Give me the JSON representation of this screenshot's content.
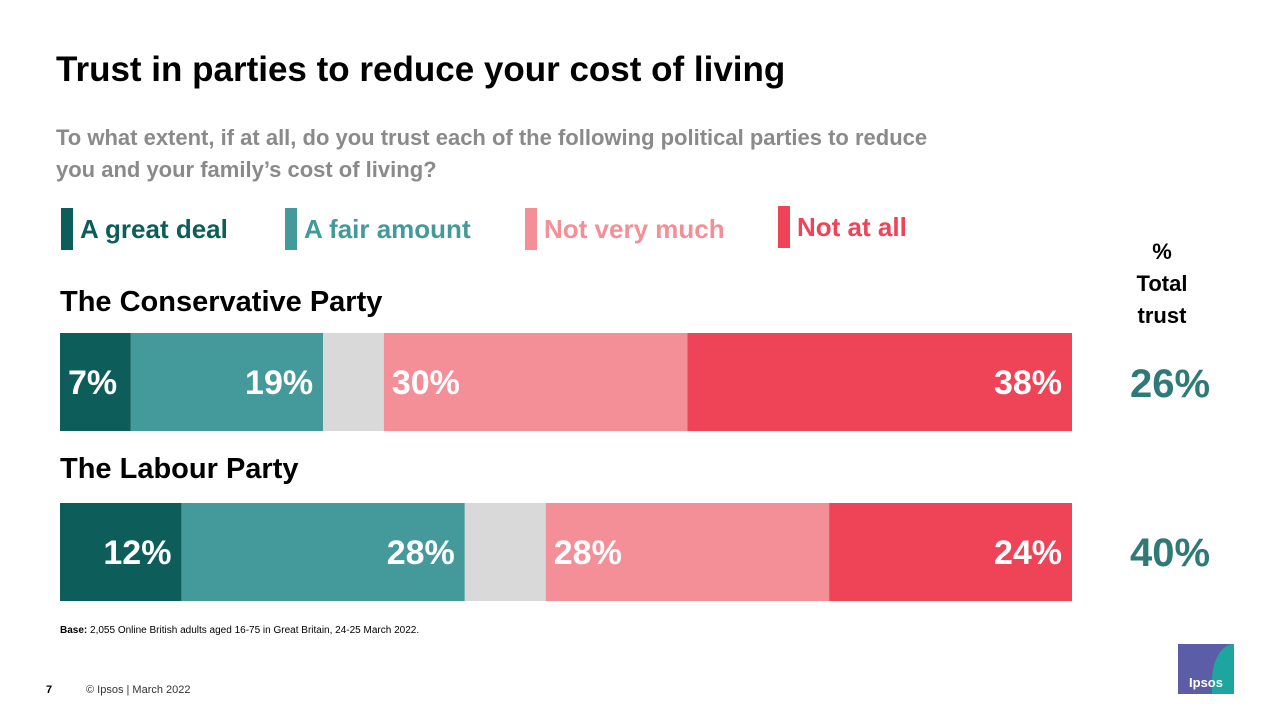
{
  "title": "Trust in parties to reduce your cost of living",
  "question": "To what extent, if at all, do you trust each of the following political parties to reduce you and your family’s cost of living?",
  "legend": [
    {
      "label": "A great deal",
      "color": "#0d5e5b"
    },
    {
      "label": "A fair amount",
      "color": "#44999a"
    },
    {
      "label": "Not very much",
      "color": "#f48f97"
    },
    {
      "label": "Not at all",
      "color": "#ef4357"
    }
  ],
  "total_header": {
    "line1": "%",
    "line2": "Total",
    "line3": "trust"
  },
  "chart_data": {
    "type": "bar",
    "orientation": "horizontal",
    "stacked": true,
    "categories": [
      "The Conservative Party",
      "The Labour Party"
    ],
    "series": [
      {
        "name": "A great deal",
        "values": [
          7,
          12
        ],
        "color": "#0d5e5b"
      },
      {
        "name": "A fair amount",
        "values": [
          19,
          28
        ],
        "color": "#44999a"
      },
      {
        "name": "",
        "values": [
          6,
          8
        ],
        "color": "#d9d9d9"
      },
      {
        "name": "Not very much",
        "values": [
          30,
          28
        ],
        "color": "#f48f97"
      },
      {
        "name": "Not at all",
        "values": [
          38,
          24
        ],
        "color": "#ef4357"
      }
    ],
    "labels": [
      [
        "7%",
        "19%",
        "",
        "30%",
        "38%"
      ],
      [
        "12%",
        "28%",
        "",
        "28%",
        "24%"
      ]
    ],
    "total_trust": [
      "26%",
      "40%"
    ],
    "xlim": [
      0,
      100
    ]
  },
  "base_note": {
    "label": "Base:",
    "text": " 2,055 Online British adults aged 16-75 in Great Britain, 24-25 March 2022."
  },
  "page_number": "7",
  "footer": "© Ipsos | March 2022",
  "logo_text": "Ipsos"
}
